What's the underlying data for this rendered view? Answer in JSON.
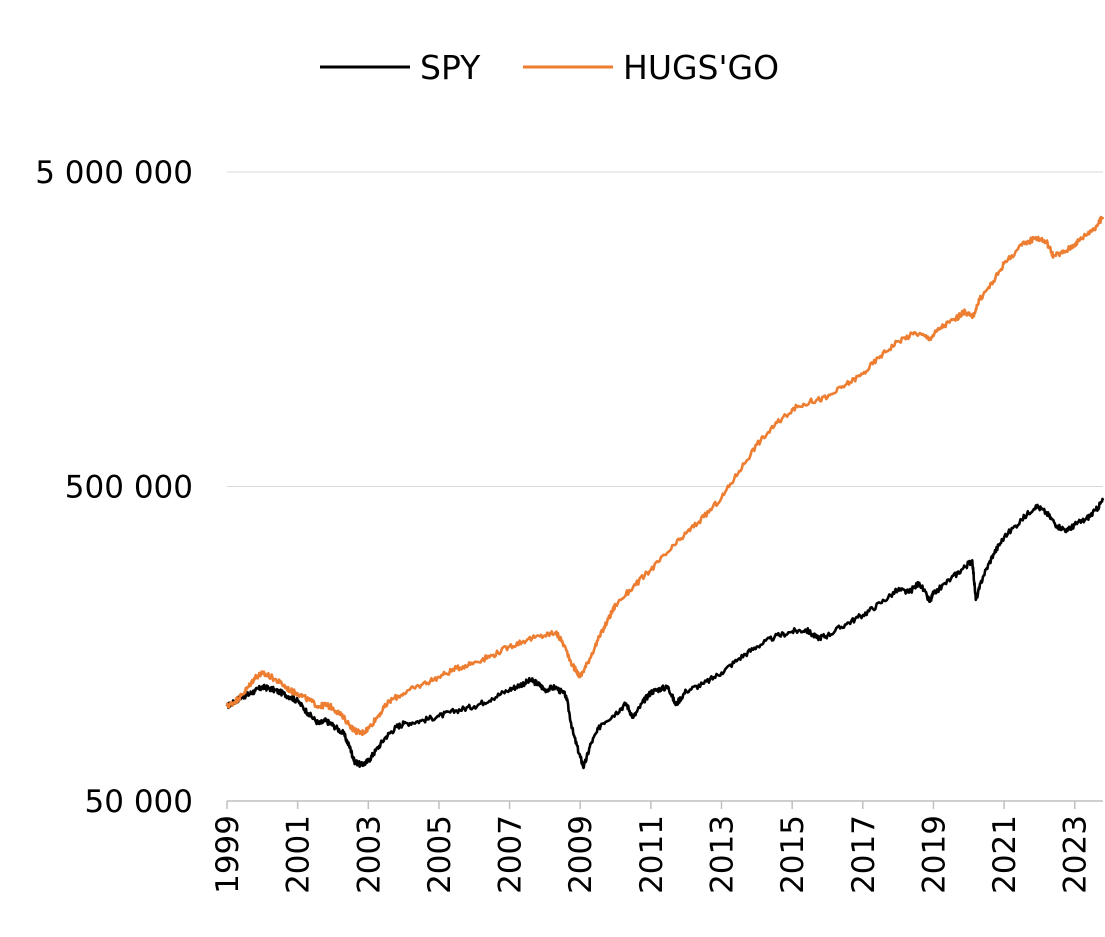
{
  "chart_data": {
    "type": "line",
    "title": "",
    "xlabel": "",
    "ylabel": "",
    "y_scale": "log",
    "ylim": [
      50000,
      5000000
    ],
    "xlim": [
      1999,
      2023.8
    ],
    "grid": "horizontal",
    "legend_position": "top-center",
    "y_ticks": [
      {
        "value": 50000,
        "label": "50 000"
      },
      {
        "value": 500000,
        "label": "500 000"
      },
      {
        "value": 5000000,
        "label": "5 000 000"
      }
    ],
    "x_ticks": [
      {
        "value": 1999,
        "label": "1999"
      },
      {
        "value": 2001,
        "label": "2001"
      },
      {
        "value": 2003,
        "label": "2003"
      },
      {
        "value": 2005,
        "label": "2005"
      },
      {
        "value": 2007,
        "label": "2007"
      },
      {
        "value": 2009,
        "label": "2009"
      },
      {
        "value": 2011,
        "label": "2011"
      },
      {
        "value": 2013,
        "label": "2013"
      },
      {
        "value": 2015,
        "label": "2015"
      },
      {
        "value": 2017,
        "label": "2017"
      },
      {
        "value": 2019,
        "label": "2019"
      },
      {
        "value": 2021,
        "label": "2021"
      },
      {
        "value": 2023,
        "label": "2023"
      }
    ],
    "series": [
      {
        "name": "SPY",
        "color": "#000000",
        "points": [
          [
            1999.0,
            100000
          ],
          [
            1999.2,
            103000
          ],
          [
            1999.4,
            107000
          ],
          [
            1999.6,
            109000
          ],
          [
            1999.8,
            112000
          ],
          [
            2000.0,
            115000
          ],
          [
            2000.2,
            114000
          ],
          [
            2000.5,
            111000
          ],
          [
            2000.8,
            107000
          ],
          [
            2001.0,
            104000
          ],
          [
            2001.3,
            95000
          ],
          [
            2001.6,
            88000
          ],
          [
            2001.8,
            90000
          ],
          [
            2002.0,
            87000
          ],
          [
            2002.3,
            82000
          ],
          [
            2002.5,
            73000
          ],
          [
            2002.6,
            67000
          ],
          [
            2002.8,
            65000
          ],
          [
            2003.0,
            67000
          ],
          [
            2003.2,
            72000
          ],
          [
            2003.5,
            80000
          ],
          [
            2003.8,
            86000
          ],
          [
            2004.0,
            88000
          ],
          [
            2004.5,
            90000
          ],
          [
            2005.0,
            93000
          ],
          [
            2005.5,
            97000
          ],
          [
            2006.0,
            100000
          ],
          [
            2006.5,
            106000
          ],
          [
            2007.0,
            113000
          ],
          [
            2007.3,
            117000
          ],
          [
            2007.6,
            121000
          ],
          [
            2007.8,
            118000
          ],
          [
            2008.0,
            113000
          ],
          [
            2008.3,
            115000
          ],
          [
            2008.6,
            108000
          ],
          [
            2008.8,
            82000
          ],
          [
            2009.0,
            69000
          ],
          [
            2009.1,
            64000
          ],
          [
            2009.3,
            76000
          ],
          [
            2009.6,
            88000
          ],
          [
            2010.0,
            95000
          ],
          [
            2010.3,
            102000
          ],
          [
            2010.5,
            92000
          ],
          [
            2010.8,
            104000
          ],
          [
            2011.0,
            111000
          ],
          [
            2011.3,
            114000
          ],
          [
            2011.5,
            115000
          ],
          [
            2011.7,
            101000
          ],
          [
            2012.0,
            112000
          ],
          [
            2012.5,
            118000
          ],
          [
            2013.0,
            128000
          ],
          [
            2013.5,
            142000
          ],
          [
            2014.0,
            155000
          ],
          [
            2014.5,
            166000
          ],
          [
            2015.0,
            173000
          ],
          [
            2015.4,
            175000
          ],
          [
            2015.7,
            165000
          ],
          [
            2016.0,
            168000
          ],
          [
            2016.5,
            182000
          ],
          [
            2017.0,
            195000
          ],
          [
            2017.5,
            213000
          ],
          [
            2018.0,
            235000
          ],
          [
            2018.3,
            230000
          ],
          [
            2018.6,
            247000
          ],
          [
            2018.9,
            215000
          ],
          [
            2019.0,
            228000
          ],
          [
            2019.5,
            255000
          ],
          [
            2019.9,
            278000
          ],
          [
            2020.1,
            291000
          ],
          [
            2020.2,
            218000
          ],
          [
            2020.4,
            258000
          ],
          [
            2020.7,
            305000
          ],
          [
            2021.0,
            345000
          ],
          [
            2021.5,
            392000
          ],
          [
            2021.9,
            435000
          ],
          [
            2022.2,
            412000
          ],
          [
            2022.5,
            375000
          ],
          [
            2022.8,
            362000
          ],
          [
            2023.0,
            378000
          ],
          [
            2023.3,
            392000
          ],
          [
            2023.6,
            420000
          ],
          [
            2023.8,
            452000
          ]
        ]
      },
      {
        "name": "HUGS'GO",
        "color": "#ED7D31",
        "points": [
          [
            1999.0,
            100000
          ],
          [
            1999.2,
            103000
          ],
          [
            1999.4,
            108000
          ],
          [
            1999.6,
            115000
          ],
          [
            1999.8,
            124000
          ],
          [
            2000.0,
            127000
          ],
          [
            2000.2,
            125000
          ],
          [
            2000.5,
            119000
          ],
          [
            2000.8,
            112000
          ],
          [
            2001.0,
            110000
          ],
          [
            2001.3,
            105000
          ],
          [
            2001.6,
            100000
          ],
          [
            2001.8,
            101000
          ],
          [
            2002.0,
            99000
          ],
          [
            2002.3,
            92000
          ],
          [
            2002.6,
            84000
          ],
          [
            2002.8,
            82000
          ],
          [
            2003.0,
            85000
          ],
          [
            2003.3,
            94000
          ],
          [
            2003.6,
            104000
          ],
          [
            2004.0,
            110000
          ],
          [
            2004.5,
            117000
          ],
          [
            2005.0,
            124000
          ],
          [
            2005.5,
            132000
          ],
          [
            2006.0,
            138000
          ],
          [
            2006.5,
            145000
          ],
          [
            2007.0,
            155000
          ],
          [
            2007.5,
            163000
          ],
          [
            2008.0,
            168000
          ],
          [
            2008.3,
            172000
          ],
          [
            2008.5,
            160000
          ],
          [
            2008.8,
            134000
          ],
          [
            2009.0,
            124000
          ],
          [
            2009.2,
            137000
          ],
          [
            2009.5,
            162000
          ],
          [
            2009.8,
            190000
          ],
          [
            2010.0,
            210000
          ],
          [
            2010.5,
            240000
          ],
          [
            2011.0,
            272000
          ],
          [
            2011.5,
            310000
          ],
          [
            2012.0,
            355000
          ],
          [
            2012.5,
            400000
          ],
          [
            2013.0,
            460000
          ],
          [
            2013.5,
            560000
          ],
          [
            2014.0,
            680000
          ],
          [
            2014.5,
            780000
          ],
          [
            2015.0,
            880000
          ],
          [
            2015.5,
            930000
          ],
          [
            2016.0,
            960000
          ],
          [
            2016.5,
            1050000
          ],
          [
            2017.0,
            1140000
          ],
          [
            2017.5,
            1300000
          ],
          [
            2018.0,
            1450000
          ],
          [
            2018.5,
            1540000
          ],
          [
            2018.9,
            1480000
          ],
          [
            2019.2,
            1600000
          ],
          [
            2019.6,
            1700000
          ],
          [
            2019.9,
            1800000
          ],
          [
            2020.1,
            1720000
          ],
          [
            2020.3,
            1960000
          ],
          [
            2020.7,
            2250000
          ],
          [
            2021.0,
            2560000
          ],
          [
            2021.5,
            2920000
          ],
          [
            2021.9,
            3100000
          ],
          [
            2022.2,
            3000000
          ],
          [
            2022.4,
            2700000
          ],
          [
            2022.7,
            2780000
          ],
          [
            2023.0,
            2950000
          ],
          [
            2023.3,
            3150000
          ],
          [
            2023.6,
            3350000
          ],
          [
            2023.8,
            3600000
          ]
        ]
      }
    ]
  }
}
